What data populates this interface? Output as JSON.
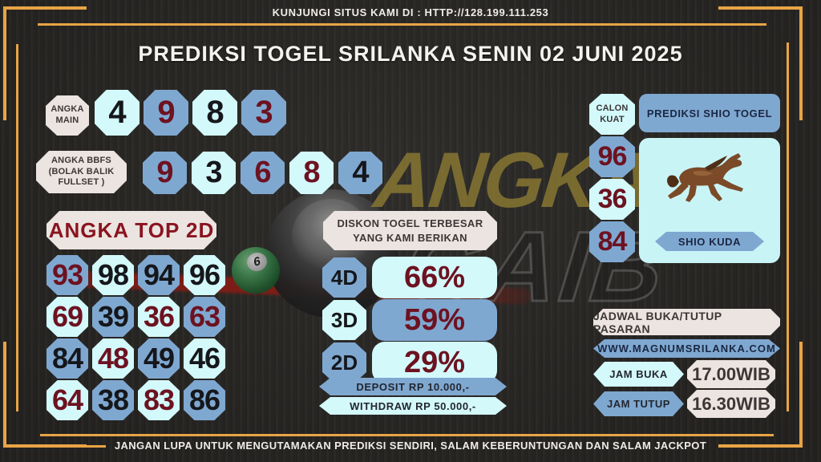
{
  "header": {
    "top_text": "KUNJUNGI SITUS KAMI DI : HTTP://128.199.111.253",
    "title": "PREDIKSI TOGEL SRILANKA SENIN 02 JUNI 2025"
  },
  "footer": {
    "text": "JANGAN LUPA UNTUK MENGUTAMAKAN PREDIKSI SENDIRI, SALAM KEBERUNTUNGAN DAN SALAM JACKPOT"
  },
  "angka_main": {
    "label_lines": [
      "ANGKA",
      "MAIN"
    ],
    "numbers": [
      {
        "v": "4",
        "bg": "cyan",
        "fg": "black"
      },
      {
        "v": "9",
        "bg": "blue",
        "fg": "red"
      },
      {
        "v": "8",
        "bg": "cyan",
        "fg": "black"
      },
      {
        "v": "3",
        "bg": "blue",
        "fg": "red"
      }
    ]
  },
  "angka_bbfs": {
    "label_lines": [
      "ANGKA BBFS",
      "(BOLAK BALIK",
      "FULLSET )"
    ],
    "numbers": [
      {
        "v": "9",
        "bg": "blue",
        "fg": "red"
      },
      {
        "v": "3",
        "bg": "cyan",
        "fg": "black"
      },
      {
        "v": "6",
        "bg": "blue",
        "fg": "red"
      },
      {
        "v": "8",
        "bg": "cyan",
        "fg": "red"
      },
      {
        "v": "4",
        "bg": "blue",
        "fg": "black"
      }
    ]
  },
  "angka_top_2d": {
    "title": "ANGKA TOP 2D",
    "cells": [
      {
        "v": "93",
        "bg": "blue",
        "fg": "red"
      },
      {
        "v": "98",
        "bg": "cyan",
        "fg": "black"
      },
      {
        "v": "94",
        "bg": "blue",
        "fg": "black"
      },
      {
        "v": "96",
        "bg": "cyan",
        "fg": "black"
      },
      {
        "v": "69",
        "bg": "cyan",
        "fg": "red"
      },
      {
        "v": "39",
        "bg": "blue",
        "fg": "black"
      },
      {
        "v": "36",
        "bg": "cyan",
        "fg": "red"
      },
      {
        "v": "63",
        "bg": "blue",
        "fg": "red"
      },
      {
        "v": "84",
        "bg": "blue",
        "fg": "black"
      },
      {
        "v": "48",
        "bg": "cyan",
        "fg": "red"
      },
      {
        "v": "49",
        "bg": "blue",
        "fg": "black"
      },
      {
        "v": "46",
        "bg": "cyan",
        "fg": "black"
      },
      {
        "v": "64",
        "bg": "cyan",
        "fg": "red"
      },
      {
        "v": "38",
        "bg": "blue",
        "fg": "black"
      },
      {
        "v": "83",
        "bg": "cyan",
        "fg": "red"
      },
      {
        "v": "86",
        "bg": "blue",
        "fg": "black"
      }
    ]
  },
  "diskon": {
    "title_lines": [
      "DISKON TOGEL TERBESAR",
      "YANG KAMI BERIKAN"
    ],
    "rows": [
      {
        "label": "4D",
        "value": "66%",
        "label_bg": "blue",
        "value_bg": "cyan"
      },
      {
        "label": "3D",
        "value": "59%",
        "label_bg": "cyan",
        "value_bg": "blue"
      },
      {
        "label": "2D",
        "value": "29%",
        "label_bg": "blue",
        "value_bg": "cyan"
      }
    ],
    "deposit": "DEPOSIT RP 10.000,-",
    "withdraw": "WITHDRAW RP 50.000,-"
  },
  "calon_kuat": {
    "label_lines": [
      "CALON",
      "KUAT"
    ],
    "numbers": [
      {
        "v": "96",
        "bg": "blue"
      },
      {
        "v": "36",
        "bg": "cyan"
      },
      {
        "v": "84",
        "bg": "blue"
      }
    ]
  },
  "shio": {
    "title": "PREDIKSI SHIO TOGEL",
    "banner": "SHIO KUDA",
    "animal": "horse"
  },
  "jadwal": {
    "title": "JADWAL BUKA/TUTUP PASARAN",
    "website": "WWW.MAGNUMSRILANKA.COM",
    "rows": [
      {
        "label": "JAM BUKA",
        "value": "17.00WIB",
        "label_bg": "cyan"
      },
      {
        "label": "JAM TUTUP",
        "value": "16.30WIB",
        "label_bg": "blue"
      }
    ]
  },
  "watermark": {
    "line1": "ANGKA",
    "line2": "GAIB",
    "ball_number": "6"
  },
  "colors": {
    "background": "#2d2b28",
    "gold": "#e9a445",
    "cream": "#ebe4e0",
    "cyan": "#d3f9fb",
    "blue": "#7fa8d1",
    "digit_red": "#6d1220",
    "digit_black": "#15171b",
    "title_red": "#8a1420",
    "navy": "#1a2742",
    "light_text": "#f2efec"
  }
}
